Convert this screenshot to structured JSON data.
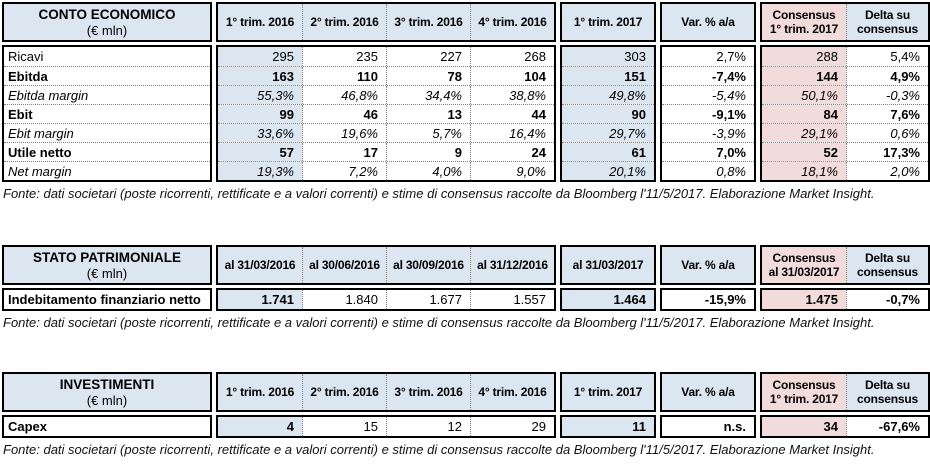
{
  "colors": {
    "header_fill": "#dce6f1",
    "consensus_fill": "#f2dcdb",
    "grid_dotted": "#808080",
    "border": "#000000",
    "text": "#000000"
  },
  "tables": [
    {
      "title": "CONTO ECONOMICO",
      "unit": "(€ mln)",
      "columns": [
        "1° trim. 2016",
        "2° trim. 2016",
        "3° trim. 2016",
        "4° trim. 2016",
        "1° trim. 2017",
        "Var. % a/a",
        "Consensus\n1° trim. 2017",
        "Delta su\nconsensus"
      ],
      "rows": [
        {
          "label": "Ricavi",
          "label_style": "normal",
          "cell_styles": [
            "n",
            "n",
            "n",
            "n",
            "n",
            "n",
            "n",
            "n"
          ],
          "values": [
            "295",
            "235",
            "227",
            "268",
            "303",
            "2,7%",
            "288",
            "5,4%"
          ]
        },
        {
          "label": "Ebitda",
          "label_style": "bold",
          "cell_styles": [
            "b",
            "b",
            "b",
            "b",
            "b",
            "b",
            "b",
            "b"
          ],
          "values": [
            "163",
            "110",
            "78",
            "104",
            "151",
            "-7,4%",
            "144",
            "4,9%"
          ]
        },
        {
          "label": "Ebitda margin",
          "label_style": "italic",
          "cell_styles": [
            "i",
            "i",
            "i",
            "i",
            "i",
            "i",
            "i",
            "i"
          ],
          "values": [
            "55,3%",
            "46,8%",
            "34,4%",
            "38,8%",
            "49,8%",
            "-5,4%",
            "50,1%",
            "-0,3%"
          ]
        },
        {
          "label": "Ebit",
          "label_style": "bold",
          "cell_styles": [
            "b",
            "b",
            "b",
            "b",
            "b",
            "b",
            "b",
            "b"
          ],
          "values": [
            "99",
            "46",
            "13",
            "44",
            "90",
            "-9,1%",
            "84",
            "7,6%"
          ]
        },
        {
          "label": "Ebit margin",
          "label_style": "italic",
          "cell_styles": [
            "i",
            "i",
            "i",
            "i",
            "i",
            "i",
            "i",
            "i"
          ],
          "values": [
            "33,6%",
            "19,6%",
            "5,7%",
            "16,4%",
            "29,7%",
            "-3,9%",
            "29,1%",
            "0,6%"
          ]
        },
        {
          "label": "Utile netto",
          "label_style": "bold",
          "cell_styles": [
            "b",
            "b",
            "b",
            "b",
            "b",
            "b",
            "b",
            "b"
          ],
          "values": [
            "57",
            "17",
            "9",
            "24",
            "61",
            "7,0%",
            "52",
            "17,3%"
          ]
        },
        {
          "label": "Net margin",
          "label_style": "italic",
          "cell_styles": [
            "i",
            "i",
            "i",
            "i",
            "i",
            "i",
            "i",
            "i"
          ],
          "values": [
            "19,3%",
            "7,2%",
            "4,0%",
            "9,0%",
            "20,1%",
            "0,8%",
            "18,1%",
            "2,0%"
          ]
        }
      ],
      "fonte": "Fonte: dati societari (poste ricorrenti, rettificate e a valori correnti) e stime di consensus raccolte da Bloomberg l'11/5/2017. Elaborazione Market Insight."
    },
    {
      "title": "STATO PATRIMONIALE",
      "unit": "(€ mln)",
      "columns": [
        "al 31/03/2016",
        "al 30/06/2016",
        "al 30/09/2016",
        "al 31/12/2016",
        "al 31/03/2017",
        "Var. % a/a",
        "Consensus\nal 31/03/2017",
        "Delta su\nconsensus"
      ],
      "rows": [
        {
          "label": "Indebitamento finanziario netto",
          "label_style": "bold",
          "cell_styles": [
            "b",
            "n",
            "n",
            "n",
            "b",
            "b",
            "b",
            "b"
          ],
          "values": [
            "1.741",
            "1.840",
            "1.677",
            "1.557",
            "1.464",
            "-15,9%",
            "1.475",
            "-0,7%"
          ]
        }
      ],
      "fonte": "Fonte: dati societari (poste ricorrenti, rettificate e a valori correnti) e stime di consensus raccolte da Bloomberg l'11/5/2017. Elaborazione Market Insight."
    },
    {
      "title": "INVESTIMENTI",
      "unit": "(€ mln)",
      "columns": [
        "1° trim. 2016",
        "2° trim. 2016",
        "3° trim. 2016",
        "4° trim. 2016",
        "1° trim. 2017",
        "Var. % a/a",
        "Consensus\n1° trim. 2017",
        "Delta su\nconsensus"
      ],
      "rows": [
        {
          "label": "Capex",
          "label_style": "bold",
          "cell_styles": [
            "b",
            "n",
            "n",
            "n",
            "b",
            "b",
            "b",
            "b"
          ],
          "values": [
            "4",
            "15",
            "12",
            "29",
            "11",
            "n.s.",
            "34",
            "-67,6%"
          ]
        }
      ],
      "fonte": "Fonte: dati societari (poste ricorrenti, rettificate e a valori correnti) e stime di consensus raccolte da Bloomberg l'11/5/2017. Elaborazione Market Insight."
    }
  ]
}
